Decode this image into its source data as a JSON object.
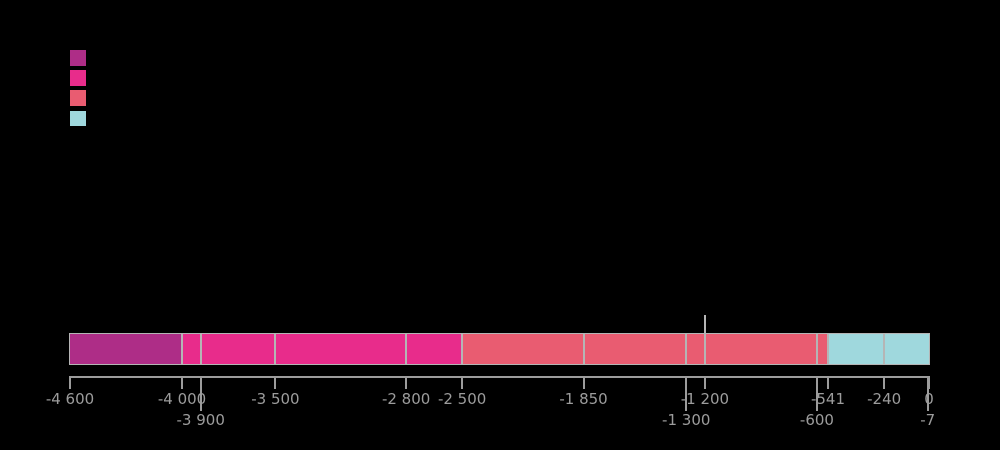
{
  "colors": {
    "background": "#000000",
    "axis": "#9C9C9C",
    "tick_label": "#9C9C9C",
    "bar_border": "#B5B5B5",
    "divider": "#B5B5B5"
  },
  "legend": {
    "swatches": [
      {
        "id": 1,
        "color": "#AE2D87"
      },
      {
        "id": 2,
        "color": "#E82C8B"
      },
      {
        "id": 3,
        "color": "#E95C71"
      },
      {
        "id": 4,
        "color": "#9FD8DD"
      }
    ]
  },
  "chart_data": {
    "type": "bar",
    "subtype": "horizontal-stacked-timeline",
    "title": "",
    "xlim": [
      -4600,
      0
    ],
    "grid": false,
    "legend_position": "top-left",
    "axis_position": "bottom",
    "segments": [
      {
        "from": -4600,
        "to": -4000,
        "color": "#AE2D87"
      },
      {
        "from": -4000,
        "to": -2500,
        "color": "#E82C8B"
      },
      {
        "from": -2500,
        "to": -541,
        "color": "#E95C71"
      },
      {
        "from": -541,
        "to": 0,
        "color": "#9FD8DD"
      }
    ],
    "boundary_lines": [
      -4000,
      -3900,
      -3500,
      -2800,
      -2500,
      -1850,
      -1300,
      -1200,
      -600,
      -541,
      -240
    ],
    "marker_line": -1200,
    "ticks": [
      {
        "value": -4600,
        "label": "-4 600",
        "row": 1
      },
      {
        "value": -4000,
        "label": "-4 000",
        "row": 1
      },
      {
        "value": -3900,
        "label": "-3 900",
        "row": 2
      },
      {
        "value": -3500,
        "label": "-3 500",
        "row": 1
      },
      {
        "value": -2800,
        "label": "-2 800",
        "row": 1
      },
      {
        "value": -2500,
        "label": "-2 500",
        "row": 1
      },
      {
        "value": -1850,
        "label": "-1 850",
        "row": 1
      },
      {
        "value": -1300,
        "label": "-1 300",
        "row": 2
      },
      {
        "value": -1200,
        "label": "-1 200",
        "row": 1
      },
      {
        "value": -600,
        "label": "-600",
        "row": 2
      },
      {
        "value": -541,
        "label": "-541",
        "row": 1
      },
      {
        "value": -240,
        "label": "-240",
        "row": 1
      },
      {
        "value": -7,
        "label": "-7",
        "row": 2
      },
      {
        "value": 0,
        "label": "0",
        "row": 1
      }
    ]
  }
}
